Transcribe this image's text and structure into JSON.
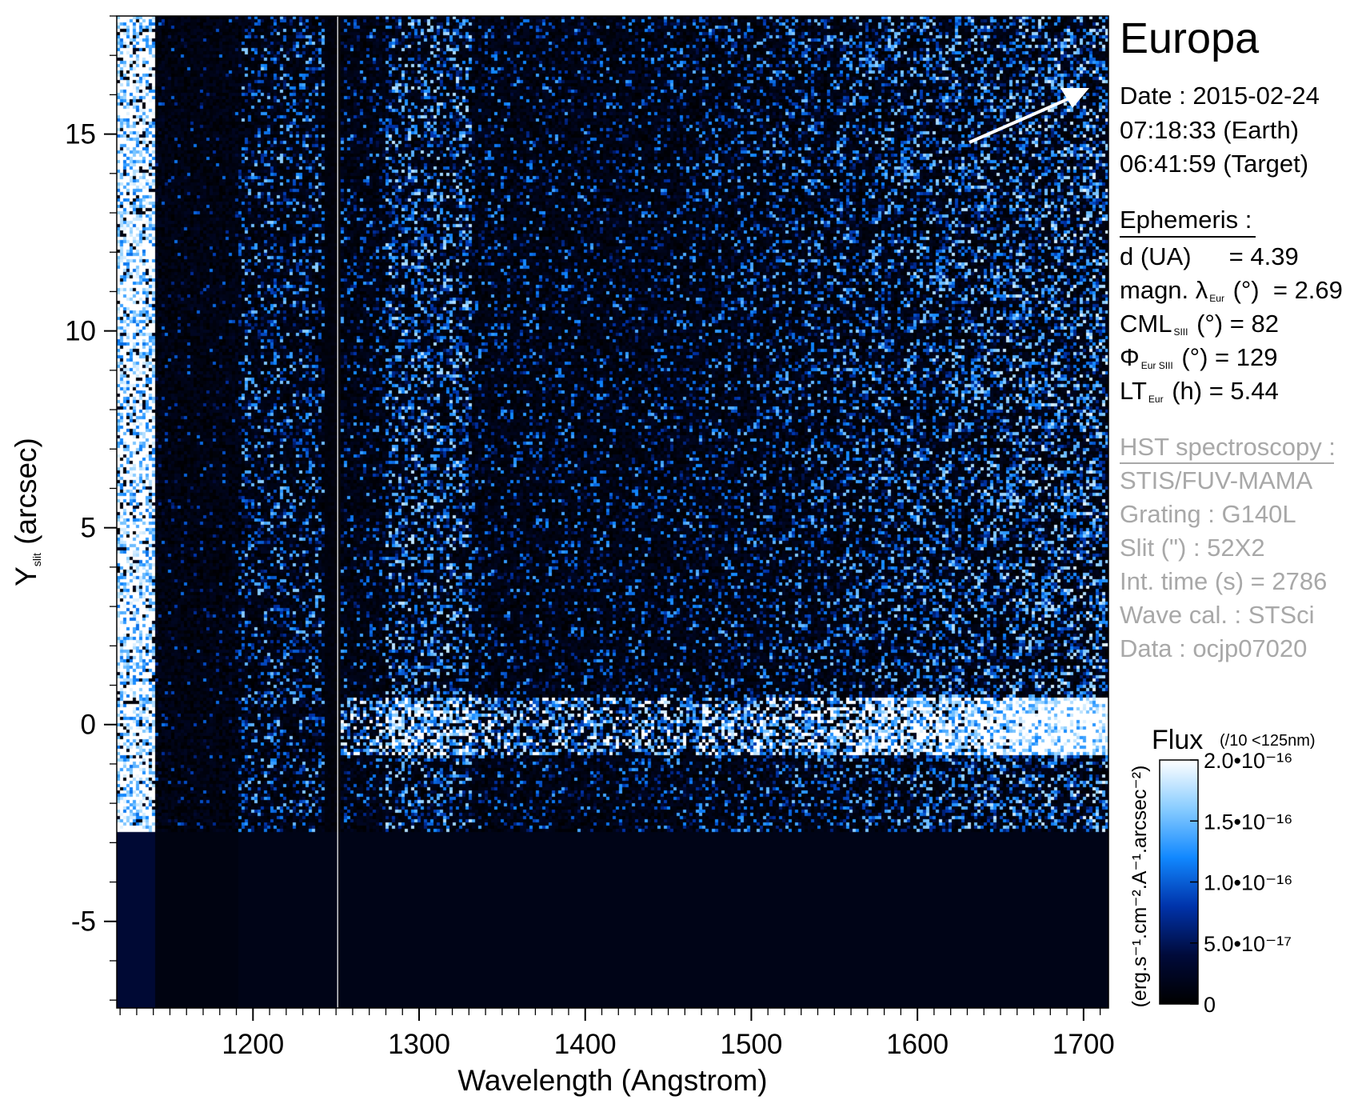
{
  "info": {
    "target": "Europa",
    "date_line": "Date : 2015-02-24",
    "earth_time": "07:18:33 (Earth)",
    "target_time": "06:41:59 (Target)",
    "ephemeris_header": "Ephemeris :",
    "ephemeris": [
      {
        "pre": "d (UA)",
        "sub": "",
        "post": "     = 4.39"
      },
      {
        "pre": "magn. λ",
        "sub": "Eur",
        "post": " (°)  = 2.69"
      },
      {
        "pre": "CML",
        "sub": "SIII",
        "post": " (°) = 82"
      },
      {
        "pre": "Φ",
        "sub": "Eur SIII",
        "post": " (°) = 129"
      },
      {
        "pre": "LT",
        "sub": "Eur",
        "post": " (h) = 5.44"
      }
    ],
    "hst_header": "HST spectroscopy :",
    "hst": [
      "STIS/FUV-MAMA",
      "Grating : G140L",
      "Slit (\") : 52X2",
      "Int. time (s) = 2786",
      "Wave cal. : STSci",
      "Data : ocjp07020"
    ]
  },
  "chart_data": {
    "type": "heatmap",
    "xlabel": "Wavelength (Angstrom)",
    "ylabel_main": "Y",
    "ylabel_sub": "slit",
    "ylabel_post": " (arcsec)",
    "xlim": [
      1118,
      1715
    ],
    "ylim": [
      -7.2,
      18
    ],
    "xticks": [
      1200,
      1300,
      1400,
      1500,
      1600,
      1700
    ],
    "yticks": [
      -5,
      0,
      5,
      10,
      15
    ],
    "x_minor_step": 10,
    "y_minor_step": 1,
    "colorbar": {
      "title": "Flux",
      "note": "(/10 <125nm)",
      "unit_label": "(erg.s⁻¹.cm⁻².A⁻¹.arcsec⁻²)",
      "range": [
        0,
        2e-16
      ],
      "ticks": [
        {
          "value": 0,
          "label": "0"
        },
        {
          "value": 5e-17,
          "label": "5.0•10⁻¹⁷"
        },
        {
          "value": 1e-16,
          "label": "1.0•10⁻¹⁶"
        },
        {
          "value": 1.5e-16,
          "label": "1.5•10⁻¹⁶"
        },
        {
          "value": 2e-16,
          "label": "2.0•10⁻¹⁶"
        }
      ],
      "colors": [
        "#000000",
        "#000a3a",
        "#0033aa",
        "#1188ff",
        "#88ccff",
        "#ffffff"
      ]
    },
    "features": {
      "detector_edge_y": -2.7,
      "bright_strip_x": [
        1118,
        1141
      ],
      "dark_band_x": [
        1141,
        1190
      ],
      "lyman_alpha_x": [
        1192,
        1242
      ],
      "occulted_x": [
        1242,
        1251
      ],
      "oi_1304_x": [
        1278,
        1330
      ],
      "europa_row_y": 0,
      "calibration_line_x": 1251
    }
  }
}
